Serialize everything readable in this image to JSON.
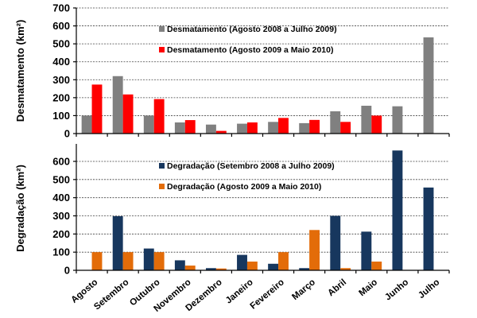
{
  "chart_data": [
    {
      "type": "bar",
      "title": "",
      "xlabel": "",
      "ylabel": "Desmatamento (km²)",
      "ylim": [
        0,
        700
      ],
      "yticks": [
        0,
        100,
        200,
        300,
        400,
        500,
        600,
        700
      ],
      "grid": true,
      "legend_position": "top-center",
      "categories": [
        "Agosto",
        "Setembro",
        "Outubro",
        "Novembro",
        "Dezembro",
        "Janeiro",
        "Fevereiro",
        "Março",
        "Abril",
        "Maio",
        "Junho",
        "Julho"
      ],
      "series": [
        {
          "name": "Desmatamento  (Agosto 2008  a Julho 2009)",
          "color": "#808080",
          "values": [
            100,
            320,
            100,
            62,
            50,
            55,
            65,
            58,
            124,
            155,
            152,
            536
          ]
        },
        {
          "name": "Desmatamento  (Agosto 2009  a Maio 2010)",
          "color": "#ff0000",
          "values": [
            273,
            218,
            192,
            75,
            15,
            62,
            87,
            76,
            65,
            100,
            null,
            null
          ]
        }
      ]
    },
    {
      "type": "bar",
      "title": "",
      "xlabel": "",
      "ylabel": "Degradação (km²)",
      "ylim": [
        0,
        700
      ],
      "yticks": [
        0,
        100,
        200,
        300,
        400,
        500,
        600
      ],
      "grid": true,
      "legend_position": "top-center",
      "categories": [
        "Agosto",
        "Setembro",
        "Outubro",
        "Novembro",
        "Dezembro",
        "Janeiro",
        "Fevereiro",
        "Março",
        "Abril",
        "Maio",
        "Junho",
        "Julho"
      ],
      "series": [
        {
          "name": "Degradação  (Setembro  2008  a Julho  2009)",
          "color": "#17375e",
          "values": [
            null,
            298,
            120,
            55,
            12,
            85,
            36,
            12,
            300,
            213,
            660,
            456
          ]
        },
        {
          "name": "Degradação  (Agosto  2009  a Maio  2010)",
          "color": "#e36c09",
          "values": [
            100,
            100,
            100,
            26,
            10,
            48,
            100,
            222,
            12,
            48,
            null,
            null
          ]
        }
      ]
    }
  ]
}
